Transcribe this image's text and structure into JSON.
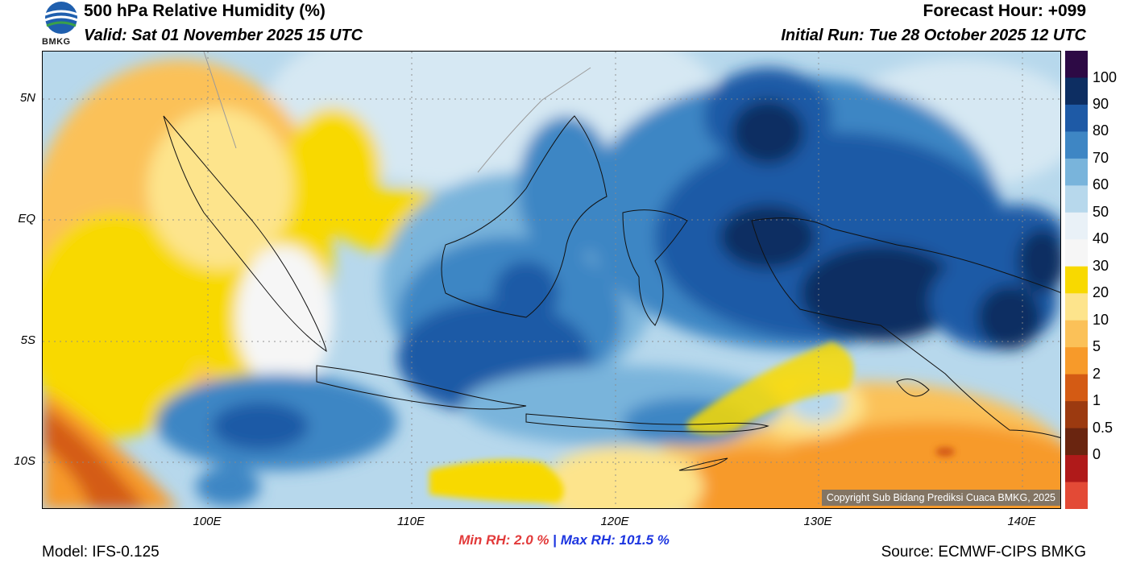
{
  "header": {
    "title": "500 hPa Relative Humidity (%)",
    "valid": "Valid: Sat 01 November 2025 15 UTC",
    "forecast_hour": "Forecast Hour: +099",
    "initial_run": "Initial Run: Tue 28 October 2025 12 UTC",
    "logo_text": "BMKG"
  },
  "axes": {
    "lat_labels": [
      "5N",
      "EQ",
      "5S",
      "10S"
    ],
    "lon_labels": [
      "100E",
      "110E",
      "120E",
      "130E",
      "140E"
    ]
  },
  "colorbar": {
    "labels": [
      "100",
      "90",
      "80",
      "70",
      "60",
      "50",
      "40",
      "30",
      "20",
      "10",
      "5",
      "2",
      "1",
      "0.5",
      "0"
    ],
    "colors": [
      "#2d0a45",
      "#0d2e62",
      "#1e5aa6",
      "#3e86c4",
      "#79b4db",
      "#b7d8ec",
      "#e9f1f7",
      "#f6f6f6",
      "#f8d900",
      "#fde48c",
      "#fbc158",
      "#f79a2a",
      "#d45b14",
      "#9c3a10",
      "#6a2510",
      "#b01a1a",
      "#e34a36"
    ]
  },
  "stats": {
    "min_label": "Min RH:",
    "min_value": "2.0 %",
    "separator": "|",
    "max_label": "Max RH:",
    "max_value": "101.5 %"
  },
  "footer": {
    "model": "Model: IFS-0.125",
    "source": "Source: ECMWF-CIPS BMKG",
    "copyright": "Copyright Sub Bidang Prediksi Cuaca BMKG, 2025"
  }
}
